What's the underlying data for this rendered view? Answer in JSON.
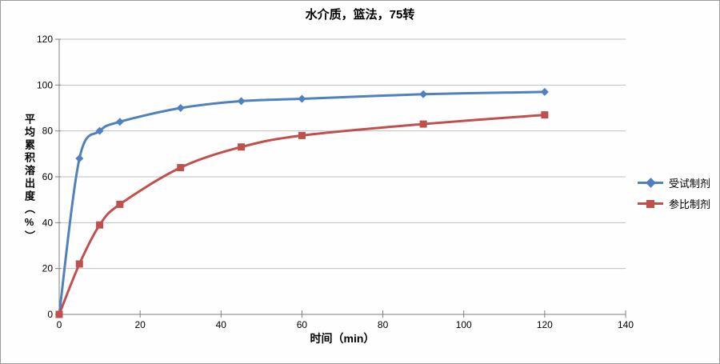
{
  "frame": {
    "background": "#fefefe",
    "border_color": "#9c9c9c"
  },
  "chart_data": {
    "type": "line",
    "title": "水介质，篮法，75转",
    "xlabel": "时间（min）",
    "ylabel": "平均累积溶出度（%）",
    "x": [
      0,
      5,
      10,
      15,
      30,
      45,
      60,
      90,
      120
    ],
    "series": [
      {
        "name": "受试制剂",
        "color": "#4F81BD",
        "marker": "diamond",
        "values": [
          0,
          68,
          80,
          84,
          90,
          93,
          94,
          96,
          97
        ]
      },
      {
        "name": "参比制剂",
        "color": "#C0504D",
        "marker": "square",
        "values": [
          0,
          22,
          39,
          48,
          64,
          73,
          78,
          83,
          87
        ]
      }
    ],
    "xlim": [
      0,
      140
    ],
    "ylim": [
      0,
      120
    ],
    "x_ticks": [
      0,
      20,
      40,
      60,
      80,
      100,
      120,
      140
    ],
    "y_ticks": [
      0,
      20,
      40,
      60,
      80,
      100,
      120
    ],
    "grid": "horizontal",
    "legend_position": "right",
    "smooth_lines": true,
    "axis_color": "#808080",
    "grid_color": "#bfbfbf",
    "tick_label_color": "#000000",
    "tick_label_font_size": 12
  }
}
